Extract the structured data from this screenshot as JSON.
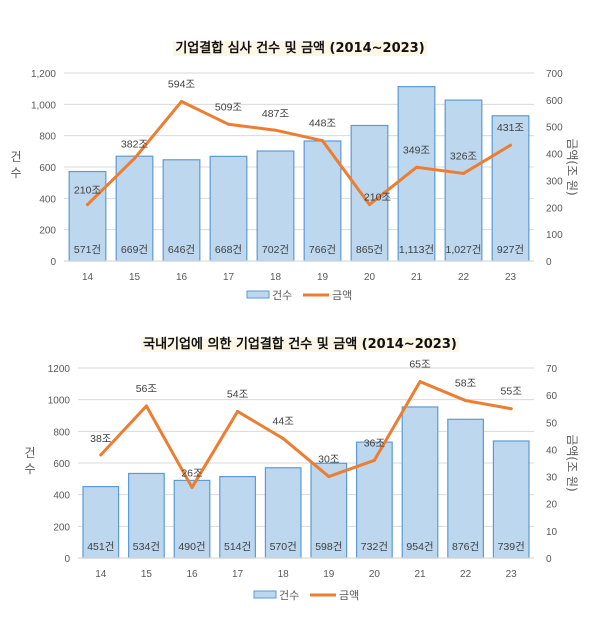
{
  "chart_data": [
    {
      "type": "bar",
      "title": "기업결합 심사 건수 및 금액 (2014~2023)",
      "categories": [
        "14",
        "15",
        "16",
        "17",
        "18",
        "19",
        "20",
        "21",
        "22",
        "23"
      ],
      "series": [
        {
          "name": "건수",
          "type": "bar",
          "axis": "left",
          "values": [
            571,
            669,
            646,
            668,
            702,
            766,
            865,
            1113,
            1027,
            927
          ],
          "labels": [
            "571건",
            "669건",
            "646건",
            "668건",
            "702건",
            "766건",
            "865건",
            "1,113건",
            "1,027건",
            "927건"
          ]
        },
        {
          "name": "금액",
          "type": "line",
          "axis": "right",
          "values": [
            210,
            382,
            594,
            509,
            487,
            448,
            210,
            349,
            326,
            431
          ],
          "labels": [
            "210조",
            "382조",
            "594조",
            "509조",
            "487조",
            "448조",
            "210조",
            "349조",
            "326조",
            "431조"
          ]
        }
      ],
      "ylabel": "건수",
      "y2label": "금액(조 원)",
      "ylim": [
        0,
        1200
      ],
      "y2lim": [
        0,
        700
      ],
      "yticks": [
        "0",
        "200",
        "400",
        "600",
        "800",
        "1,000",
        "1,200"
      ],
      "y2ticks": [
        "0",
        "100",
        "200",
        "300",
        "400",
        "500",
        "600",
        "700"
      ],
      "grid": true,
      "legend": {
        "position": "bottom",
        "entries": [
          "건수",
          "금액"
        ]
      }
    },
    {
      "type": "bar",
      "title": "국내기업에 의한 기업결합 건수 및 금액 (2014~2023)",
      "categories": [
        "14",
        "15",
        "16",
        "17",
        "18",
        "19",
        "20",
        "21",
        "22",
        "23"
      ],
      "series": [
        {
          "name": "건수",
          "type": "bar",
          "axis": "left",
          "values": [
            451,
            534,
            490,
            514,
            570,
            598,
            732,
            954,
            876,
            739
          ],
          "labels": [
            "451건",
            "534건",
            "490건",
            "514건",
            "570건",
            "598건",
            "732건",
            "954건",
            "876건",
            "739건"
          ]
        },
        {
          "name": "금액",
          "type": "line",
          "axis": "right",
          "values": [
            38,
            56,
            26,
            54,
            44,
            30,
            36,
            65,
            58,
            55
          ],
          "labels": [
            "38조",
            "56조",
            "26조",
            "54조",
            "44조",
            "30조",
            "36조",
            "65조",
            "58조",
            "55조"
          ]
        }
      ],
      "ylabel": "건수",
      "y2label": "금액(조 원)",
      "ylim": [
        0,
        1200
      ],
      "y2lim": [
        0,
        70
      ],
      "yticks": [
        "0",
        "200",
        "400",
        "600",
        "800",
        "1000",
        "1200"
      ],
      "y2ticks": [
        "0",
        "10",
        "20",
        "30",
        "40",
        "50",
        "60",
        "70"
      ],
      "grid": true,
      "legend": {
        "position": "bottom",
        "entries": [
          "건수",
          "금액"
        ]
      }
    }
  ],
  "colors": {
    "bar_fill": "#bdd7ee",
    "bar_stroke": "#5b9bd5",
    "line": "#ed7d31",
    "grid": "#d9d9d9",
    "title_bg": "#fdf6e6"
  }
}
